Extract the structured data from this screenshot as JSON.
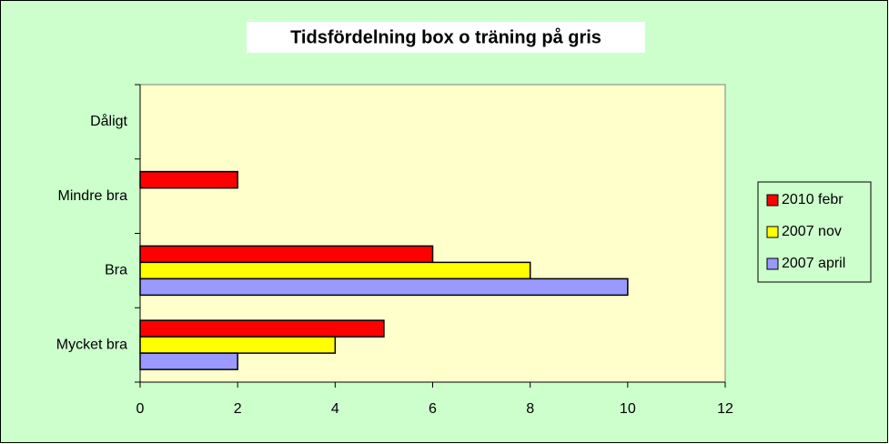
{
  "chart_data": {
    "type": "barh",
    "title": "Tidsfördelning box o träning på gris",
    "categories": [
      "Dåligt",
      "Mindre bra",
      "Bra",
      "Mycket bra"
    ],
    "series": [
      {
        "name": "2010 febr",
        "color": "#ff0000",
        "values": [
          null,
          2,
          6,
          5
        ]
      },
      {
        "name": "2007 nov",
        "color": "#ffff00",
        "values": [
          null,
          null,
          8,
          4
        ]
      },
      {
        "name": "2007 april",
        "color": "#9999ff",
        "values": [
          null,
          null,
          10,
          2
        ]
      }
    ],
    "xlim": [
      0,
      12
    ],
    "xticks": [
      0,
      2,
      4,
      6,
      8,
      10,
      12
    ],
    "legend": "right"
  }
}
